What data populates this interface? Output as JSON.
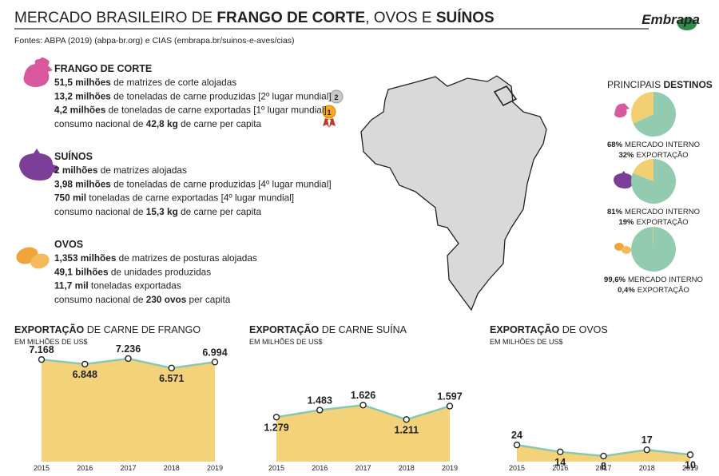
{
  "header": {
    "title": [
      {
        "text": "MERCADO BRASILEIRO DE ",
        "bold": false
      },
      {
        "text": "FRANGO DE CORTE",
        "bold": true
      },
      {
        "text": ", OVOS E ",
        "bold": false
      },
      {
        "text": "SUÍNOS",
        "bold": true
      }
    ],
    "source": "Fontes: ABPA (2019) (abpa-br.org) e CIAS (embrapa.br/suinos-e-aves/cias)",
    "logo": "Embrapa"
  },
  "sections": [
    {
      "title": "FRANGO DE CORTE",
      "lines": [
        [
          {
            "text": "51,5 milhões",
            "bold": true
          },
          {
            "text": " de matrizes de corte alojadas",
            "bold": false
          }
        ],
        [
          {
            "text": "13,2 milhões",
            "bold": true
          },
          {
            "text": " de toneladas de carne produzidas [2º lugar mundial]",
            "bold": false
          }
        ],
        [
          {
            "text": "4,2 milhões",
            "bold": true
          },
          {
            "text": " de toneladas de carne exportadas [1º lugar mundial]",
            "bold": false
          }
        ],
        [
          {
            "text": "consumo nacional de ",
            "bold": false
          },
          {
            "text": "42,8 kg",
            "bold": true
          },
          {
            "text": " de carne per capita",
            "bold": false
          }
        ]
      ]
    },
    {
      "title": "SUÍNOS",
      "lines": [
        [
          {
            "text": "2 milhões",
            "bold": true
          },
          {
            "text": " de matrizes alojadas",
            "bold": false
          }
        ],
        [
          {
            "text": "3,98 milhões",
            "bold": true
          },
          {
            "text": " de toneladas de carne produzidas [4º lugar mundial]",
            "bold": false
          }
        ],
        [
          {
            "text": "750 mil",
            "bold": true
          },
          {
            "text": " toneladas de carne exportadas [4º lugar mundial]",
            "bold": false
          }
        ],
        [
          {
            "text": "consumo nacional de ",
            "bold": false
          },
          {
            "text": "15,3 kg",
            "bold": true
          },
          {
            "text": " de carne per capita",
            "bold": false
          }
        ]
      ]
    },
    {
      "title": "OVOS",
      "lines": [
        [
          {
            "text": "1,353 milhões",
            "bold": true
          },
          {
            "text": " de matrizes de posturas alojadas",
            "bold": false
          }
        ],
        [
          {
            "text": "49,1 bilhões",
            "bold": true
          },
          {
            "text": " de unidades produzidas",
            "bold": false
          }
        ],
        [
          {
            "text": "11,7 mil",
            "bold": true
          },
          {
            "text": " toneladas exportadas",
            "bold": false
          }
        ],
        [
          {
            "text": "consumo nacional de ",
            "bold": false
          },
          {
            "text": "230 ovos",
            "bold": true
          },
          {
            "text": " per capita",
            "bold": false
          }
        ]
      ]
    }
  ],
  "medals": [
    "2",
    "1"
  ],
  "destinations": {
    "title": [
      {
        "text": "PRINCIPAIS ",
        "bold": false
      },
      {
        "text": "DESTINOS",
        "bold": true
      }
    ]
  },
  "chart_data": [
    {
      "type": "pie",
      "categories": [
        "MERCADO INTERNO",
        "EXPORTAÇÃO"
      ],
      "values": [
        68,
        32
      ],
      "value_labels": [
        "68%",
        "32%"
      ],
      "colors": [
        "#93cbb0",
        "#f2cf72"
      ]
    },
    {
      "type": "pie",
      "categories": [
        "MERCADO INTERNO",
        "EXPORTAÇÃO"
      ],
      "values": [
        81,
        19
      ],
      "value_labels": [
        "81%",
        "19%"
      ],
      "colors": [
        "#93cbb0",
        "#f2cf72"
      ]
    },
    {
      "type": "pie",
      "categories": [
        "MERCADO INTERNO",
        "EXPORTAÇÃO"
      ],
      "values": [
        99.6,
        0.4
      ],
      "value_labels": [
        "99,6%",
        "0,4%"
      ],
      "colors": [
        "#93cbb0",
        "#f2cf72"
      ]
    },
    {
      "type": "area",
      "title_bold": "EXPORTAÇÃO",
      "title": " DE CARNE DE FRANGO",
      "subtitle": "EM MILHÕES DE US$",
      "categories": [
        "2015",
        "2016",
        "2017",
        "2018",
        "2019"
      ],
      "values": [
        7168,
        6848,
        7236,
        6571,
        6994
      ],
      "value_labels": [
        "7.168",
        "6.848",
        "7.236",
        "6.571",
        "6.994"
      ],
      "ylim": [
        0,
        8300
      ],
      "color": "#f3d27a",
      "line_color": "#86c8b4"
    },
    {
      "type": "area",
      "title_bold": "EXPORTAÇÃO",
      "title": " DE CARNE SUÍNA",
      "subtitle": "EM MILHÕES DE US$",
      "categories": [
        "2015",
        "2016",
        "2017",
        "2018",
        "2019"
      ],
      "values": [
        1279,
        1483,
        1626,
        1211,
        1597
      ],
      "value_labels": [
        "1.279",
        "1.483",
        "1.626",
        "1.211",
        "1.597"
      ],
      "ylim": [
        0,
        3400
      ],
      "color": "#f3d27a",
      "line_color": "#86c8b4"
    },
    {
      "type": "area",
      "title_bold": "EXPORTAÇÃO",
      "title": " DE OVOS",
      "subtitle": "EM MILHÕES DE US$",
      "categories": [
        "2015",
        "2016",
        "2017",
        "2018",
        "2019"
      ],
      "values": [
        24,
        14,
        8,
        17,
        10
      ],
      "ylim": [
        0,
        170
      ],
      "color": "#f3d27a",
      "line_color": "#86c8b4"
    }
  ]
}
